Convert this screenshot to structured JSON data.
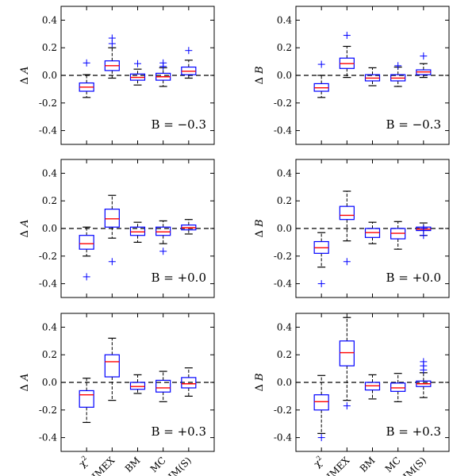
{
  "colors": {
    "box": "#0000ff",
    "median": "#ff0000",
    "whisker": "#000000",
    "flier": "#0000ff",
    "frame": "#000000",
    "zero_line": "#000000"
  },
  "chart_data": [
    {
      "type": "box",
      "row": 1,
      "col": 1,
      "ylabel_symbol": "A",
      "ylabel_prefix": "Δ",
      "annotation": "B = −0.3",
      "ylim": [
        -0.5,
        0.5
      ],
      "yticks": [
        0.4,
        0.2,
        0.0,
        -0.2,
        -0.4
      ],
      "ytick_labels": [
        "0.4",
        "0.2",
        "0.0",
        "-0.2",
        "-0.4"
      ],
      "categories": [
        "χ2",
        "SIMEX",
        "BM",
        "MC",
        "HM(S)"
      ],
      "boxes": [
        {
          "whislo": -0.16,
          "q1": -0.115,
          "med": -0.085,
          "q3": -0.055,
          "whishi": 0.005,
          "fliers": [
            0.09
          ]
        },
        {
          "whislo": -0.02,
          "q1": 0.035,
          "med": 0.07,
          "q3": 0.105,
          "whishi": 0.2,
          "fliers": [
            0.27,
            0.23
          ]
        },
        {
          "whislo": -0.07,
          "q1": -0.035,
          "med": -0.015,
          "q3": 0.01,
          "whishi": 0.045,
          "fliers": [
            0.085
          ]
        },
        {
          "whislo": -0.08,
          "q1": -0.035,
          "med": -0.01,
          "q3": 0.015,
          "whishi": 0.055,
          "fliers": [
            0.09,
            0.065
          ]
        },
        {
          "whislo": -0.02,
          "q1": 0.005,
          "med": 0.03,
          "q3": 0.06,
          "whishi": 0.11,
          "fliers": [
            0.18
          ]
        }
      ]
    },
    {
      "type": "box",
      "row": 1,
      "col": 2,
      "ylabel_symbol": "B",
      "ylabel_prefix": "Δ",
      "annotation": "B = −0.3",
      "ylim": [
        -0.5,
        0.5
      ],
      "yticks": [
        0.4,
        0.2,
        0.0,
        -0.2,
        -0.4
      ],
      "ytick_labels": [
        "0.4",
        "0.2",
        "0.0",
        "-0.2",
        "-0.4"
      ],
      "categories": [
        "χ2",
        "SIMEX",
        "BM",
        "MC",
        "HM(S)"
      ],
      "boxes": [
        {
          "whislo": -0.16,
          "q1": -0.115,
          "med": -0.09,
          "q3": -0.06,
          "whishi": 0.0,
          "fliers": [
            0.08
          ]
        },
        {
          "whislo": -0.015,
          "q1": 0.05,
          "med": 0.085,
          "q3": 0.125,
          "whishi": 0.21,
          "fliers": [
            0.29
          ]
        },
        {
          "whislo": -0.075,
          "q1": -0.04,
          "med": -0.02,
          "q3": 0.005,
          "whishi": 0.055,
          "fliers": []
        },
        {
          "whislo": -0.08,
          "q1": -0.04,
          "med": -0.02,
          "q3": 0.005,
          "whishi": 0.06,
          "fliers": [
            0.07
          ]
        },
        {
          "whislo": -0.015,
          "q1": 0.005,
          "med": 0.025,
          "q3": 0.04,
          "whishi": 0.085,
          "fliers": [
            0.14
          ]
        }
      ]
    },
    {
      "type": "box",
      "row": 2,
      "col": 1,
      "ylabel_symbol": "A",
      "ylabel_prefix": "Δ",
      "annotation": "B = +0.0",
      "ylim": [
        -0.5,
        0.5
      ],
      "yticks": [
        0.4,
        0.2,
        0.0,
        -0.2,
        -0.4
      ],
      "ytick_labels": [
        "0.4",
        "0.2",
        "0.0",
        "-0.2",
        "-0.4"
      ],
      "categories": [
        "χ2",
        "SIMEX",
        "BM",
        "MC",
        "HM(S)"
      ],
      "boxes": [
        {
          "whislo": -0.2,
          "q1": -0.15,
          "med": -0.11,
          "q3": -0.05,
          "whishi": 0.01,
          "fliers": [
            -0.35
          ]
        },
        {
          "whislo": -0.07,
          "q1": 0.01,
          "med": 0.07,
          "q3": 0.14,
          "whishi": 0.24,
          "fliers": [
            -0.24
          ]
        },
        {
          "whislo": -0.1,
          "q1": -0.05,
          "med": -0.025,
          "q3": 0.01,
          "whishi": 0.045,
          "fliers": []
        },
        {
          "whislo": -0.11,
          "q1": -0.05,
          "med": -0.025,
          "q3": 0.01,
          "whishi": 0.055,
          "fliers": [
            -0.165
          ]
        },
        {
          "whislo": -0.04,
          "q1": -0.01,
          "med": 0.005,
          "q3": 0.025,
          "whishi": 0.065,
          "fliers": []
        }
      ]
    },
    {
      "type": "box",
      "row": 2,
      "col": 2,
      "ylabel_symbol": "B",
      "ylabel_prefix": "Δ",
      "annotation": "B = +0.0",
      "ylim": [
        -0.5,
        0.5
      ],
      "yticks": [
        0.4,
        0.2,
        0.0,
        -0.2,
        -0.4
      ],
      "ytick_labels": [
        "0.4",
        "0.2",
        "0.0",
        "-0.2",
        "-0.4"
      ],
      "categories": [
        "χ2",
        "SIMEX",
        "BM",
        "MC",
        "HM(S)"
      ],
      "boxes": [
        {
          "whislo": -0.28,
          "q1": -0.18,
          "med": -0.14,
          "q3": -0.095,
          "whishi": -0.03,
          "fliers": [
            -0.4
          ]
        },
        {
          "whislo": -0.09,
          "q1": 0.065,
          "med": 0.095,
          "q3": 0.16,
          "whishi": 0.27,
          "fliers": [
            -0.24
          ]
        },
        {
          "whislo": -0.11,
          "q1": -0.065,
          "med": -0.03,
          "q3": 0.0,
          "whishi": 0.045,
          "fliers": []
        },
        {
          "whislo": -0.15,
          "q1": -0.075,
          "med": -0.035,
          "q3": 0.0,
          "whishi": 0.05,
          "fliers": []
        },
        {
          "whislo": -0.05,
          "q1": -0.015,
          "med": -0.005,
          "q3": 0.01,
          "whishi": 0.04,
          "fliers": [
            -0.05,
            0.0
          ]
        }
      ]
    },
    {
      "type": "box",
      "row": 3,
      "col": 1,
      "ylabel_symbol": "A",
      "ylabel_prefix": "Δ",
      "annotation": "B = +0.3",
      "ylim": [
        -0.5,
        0.5
      ],
      "yticks": [
        0.4,
        0.2,
        0.0,
        -0.2,
        -0.4
      ],
      "ytick_labels": [
        "0.4",
        "0.2",
        "0.0",
        "-0.2",
        "-0.4"
      ],
      "categories": [
        "χ2",
        "SIMEX",
        "BM",
        "MC",
        "HM(S)"
      ],
      "boxes": [
        {
          "whislo": -0.29,
          "q1": -0.18,
          "med": -0.09,
          "q3": -0.06,
          "whishi": 0.03,
          "fliers": []
        },
        {
          "whislo": -0.13,
          "q1": 0.04,
          "med": 0.15,
          "q3": 0.2,
          "whishi": 0.32,
          "fliers": []
        },
        {
          "whislo": -0.08,
          "q1": -0.05,
          "med": -0.03,
          "q3": 0.0,
          "whishi": 0.055,
          "fliers": []
        },
        {
          "whislo": -0.14,
          "q1": -0.07,
          "med": -0.04,
          "q3": 0.015,
          "whishi": 0.08,
          "fliers": []
        },
        {
          "whislo": -0.1,
          "q1": -0.04,
          "med": -0.01,
          "q3": 0.035,
          "whishi": 0.105,
          "fliers": []
        }
      ]
    },
    {
      "type": "box",
      "row": 3,
      "col": 2,
      "ylabel_symbol": "B",
      "ylabel_prefix": "Δ",
      "annotation": "B = +0.3",
      "ylim": [
        -0.5,
        0.5
      ],
      "yticks": [
        0.4,
        0.2,
        0.0,
        -0.2,
        -0.4
      ],
      "ytick_labels": [
        "0.4",
        "0.2",
        "0.0",
        "-0.2",
        "-0.4"
      ],
      "categories": [
        "χ2",
        "SIMEX",
        "BM",
        "MC",
        "HM(S)"
      ],
      "boxes": [
        {
          "whislo": -0.37,
          "q1": -0.2,
          "med": -0.14,
          "q3": -0.09,
          "whishi": 0.05,
          "fliers": [
            -0.4
          ]
        },
        {
          "whislo": -0.13,
          "q1": 0.12,
          "med": 0.215,
          "q3": 0.3,
          "whishi": 0.47,
          "fliers": [
            -0.17
          ]
        },
        {
          "whislo": -0.12,
          "q1": -0.055,
          "med": -0.025,
          "q3": 0.0,
          "whishi": 0.055,
          "fliers": []
        },
        {
          "whislo": -0.14,
          "q1": -0.065,
          "med": -0.04,
          "q3": -0.005,
          "whishi": 0.065,
          "fliers": []
        },
        {
          "whislo": -0.11,
          "q1": -0.03,
          "med": -0.01,
          "q3": 0.01,
          "whishi": 0.07,
          "fliers": [
            0.09,
            0.12,
            0.15
          ]
        }
      ]
    }
  ]
}
